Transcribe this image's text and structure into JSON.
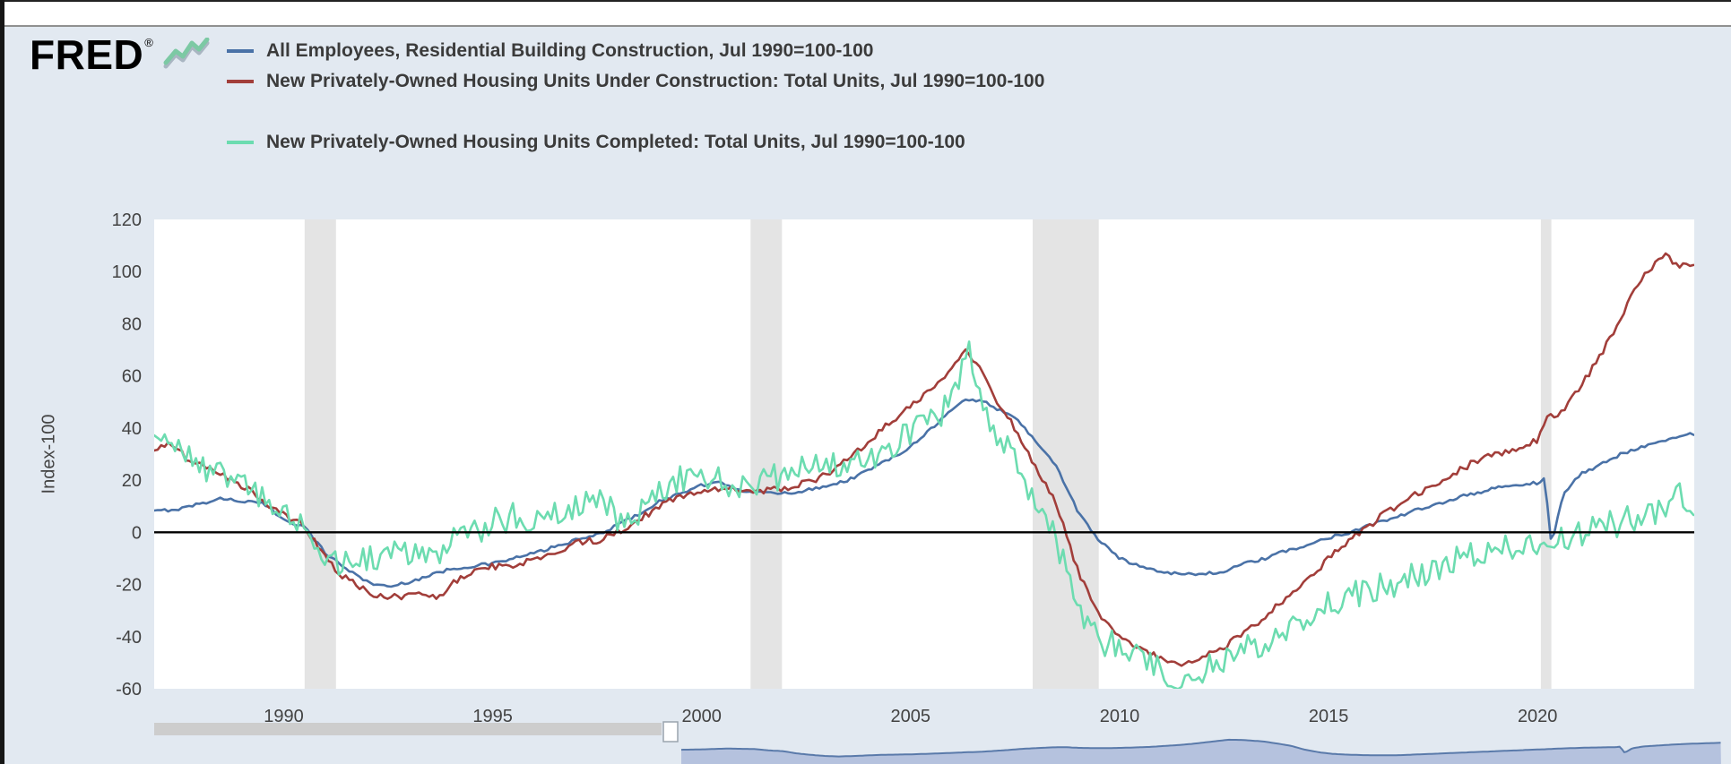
{
  "page": {
    "background": "#e2e9f1"
  },
  "header": {
    "logo": "FRED",
    "reg": "®"
  },
  "chart_data": {
    "type": "line",
    "title": "",
    "xlabel": "",
    "ylabel": "Index-100",
    "xlim": [
      1986.9,
      2023.75
    ],
    "ylim": [
      -60,
      120
    ],
    "yticks": [
      120,
      100,
      80,
      60,
      40,
      20,
      0,
      -20,
      -40,
      -60
    ],
    "xticks": [
      1990,
      1995,
      2000,
      2005,
      2010,
      2015,
      2020
    ],
    "zero_line": 0,
    "grid": false,
    "legend_position": "top-left",
    "recession_band_color": "#e4e4e4",
    "recessions": [
      [
        1990.5,
        1991.25
      ],
      [
        2001.17,
        2001.92
      ],
      [
        2007.92,
        2009.5
      ],
      [
        2020.08,
        2020.33
      ]
    ],
    "series": [
      {
        "name": "All Employees, Residential Building Construction, Jul 1990=100-100",
        "color": "#4a72a7",
        "jitter": 0.6,
        "x": [
          1986.9,
          1987.5,
          1988,
          1988.5,
          1989,
          1989.5,
          1990,
          1990.5,
          1991,
          1991.5,
          1992,
          1992.5,
          1993,
          1994,
          1995,
          1996,
          1997,
          1997.5,
          1998,
          1998.5,
          1999,
          1999.5,
          2000,
          2000.5,
          2001,
          2001.5,
          2002,
          2002.5,
          2003,
          2003.5,
          2004,
          2004.5,
          2005,
          2005.5,
          2006,
          2006.3,
          2006.8,
          2007,
          2007.5,
          2008,
          2008.5,
          2009,
          2009.5,
          2010,
          2010.5,
          2011,
          2011.5,
          2012,
          2012.5,
          2013,
          2013.5,
          2014,
          2014.5,
          2015,
          2015.5,
          2016,
          2016.5,
          2017,
          2017.5,
          2018,
          2018.5,
          2019,
          2019.5,
          2020,
          2020.17,
          2020.33,
          2020.6,
          2021,
          2021.5,
          2022,
          2022.5,
          2023,
          2023.75
        ],
        "y": [
          8,
          9,
          11,
          13,
          12,
          11,
          5,
          2,
          -8,
          -14,
          -19,
          -21,
          -19,
          -14,
          -12,
          -8,
          -3,
          -1,
          3,
          7,
          12,
          15,
          18,
          19,
          16,
          15,
          15,
          16,
          18,
          20,
          24,
          28,
          33,
          40,
          47,
          51,
          50,
          48,
          44,
          35,
          25,
          8,
          -3,
          -10,
          -13,
          -15,
          -16,
          -16,
          -15,
          -12,
          -10,
          -7,
          -5,
          -2,
          0,
          3,
          5,
          8,
          10,
          13,
          15,
          17,
          18,
          19,
          21,
          -5,
          14,
          22,
          26,
          30,
          33,
          35,
          38
        ]
      },
      {
        "name": "New Privately-Owned Housing Units Under Construction: Total Units, Jul 1990=100-100",
        "color": "#a23e3a",
        "jitter": 1.3,
        "x": [
          1986.9,
          1987.3,
          1987.7,
          1988,
          1988.5,
          1989,
          1989.5,
          1990,
          1990.5,
          1991,
          1991.5,
          1992,
          1992.5,
          1993,
          1993.7,
          1994,
          1994.5,
          1995,
          1995.5,
          1996,
          1996.5,
          1997,
          1997.5,
          1998,
          1998.5,
          1999,
          1999.5,
          2000,
          2000.5,
          2001,
          2001.5,
          2002,
          2002.5,
          2003,
          2003.5,
          2004,
          2004.5,
          2005,
          2005.5,
          2006,
          2006.3,
          2006.6,
          2007,
          2007.5,
          2008,
          2008.5,
          2009,
          2009.5,
          2010,
          2010.5,
          2011,
          2011.5,
          2012,
          2012.5,
          2013,
          2013.5,
          2014,
          2014.5,
          2015,
          2015.5,
          2016,
          2016.5,
          2017,
          2017.5,
          2018,
          2018.5,
          2019,
          2019.5,
          2020,
          2020.2,
          2020.5,
          2021,
          2021.5,
          2022,
          2022.3,
          2022.6,
          2022.9,
          2023.1,
          2023.3,
          2023.75
        ],
        "y": [
          32,
          34,
          28,
          26,
          22,
          18,
          12,
          7,
          2,
          -10,
          -18,
          -23,
          -25,
          -24,
          -25,
          -20,
          -15,
          -13,
          -13,
          -10,
          -8,
          -4,
          -3,
          0,
          5,
          10,
          14,
          16,
          17,
          16,
          16,
          17,
          19,
          22,
          28,
          35,
          42,
          48,
          55,
          62,
          70,
          65,
          52,
          40,
          25,
          10,
          -15,
          -32,
          -40,
          -45,
          -48,
          -50,
          -48,
          -44,
          -38,
          -32,
          -25,
          -18,
          -10,
          -3,
          3,
          9,
          14,
          18,
          23,
          27,
          30,
          32,
          35,
          44,
          45,
          55,
          68,
          82,
          92,
          100,
          104,
          106,
          103,
          102
        ]
      },
      {
        "name": "New Privately-Owned Housing Units Completed: Total Units, Jul 1990=100-100",
        "color": "#6cdcb0",
        "jitter": 5.5,
        "x": [
          1986.9,
          1987.2,
          1987.5,
          1988,
          1988.5,
          1989,
          1989.5,
          1990,
          1990.5,
          1991,
          1991.3,
          1992,
          1992.5,
          1993,
          1993.5,
          1994,
          1994.5,
          1995,
          1995.5,
          1996,
          1996.5,
          1997,
          1997.5,
          1998,
          1998.5,
          1999,
          1999.5,
          2000,
          2000.5,
          2001,
          2001.5,
          2002,
          2002.5,
          2003,
          2003.5,
          2004,
          2004.5,
          2005,
          2005.5,
          2006,
          2006.4,
          2006.6,
          2007,
          2007.5,
          2008,
          2008.3,
          2008.6,
          2009,
          2009.3,
          2009.6,
          2010,
          2010.5,
          2011,
          2011.3,
          2011.6,
          2012,
          2012.5,
          2013,
          2013.5,
          2014,
          2014.5,
          2015,
          2015.5,
          2016,
          2016.5,
          2017,
          2017.5,
          2018,
          2018.5,
          2019,
          2019.5,
          2020,
          2020.3,
          2020.6,
          2021,
          2021.5,
          2022,
          2022.5,
          2023,
          2023.3,
          2023.75
        ],
        "y": [
          42,
          38,
          30,
          26,
          22,
          18,
          14,
          8,
          2,
          -8,
          -12,
          -10,
          -8,
          -7,
          -10,
          -4,
          0,
          4,
          6,
          5,
          8,
          10,
          12,
          6,
          8,
          16,
          20,
          22,
          20,
          17,
          20,
          22,
          24,
          26,
          25,
          28,
          32,
          38,
          42,
          50,
          70,
          55,
          40,
          28,
          12,
          5,
          -10,
          -25,
          -38,
          -42,
          -42,
          -48,
          -52,
          -56,
          -57,
          -52,
          -50,
          -45,
          -42,
          -37,
          -33,
          -28,
          -25,
          -22,
          -20,
          -16,
          -14,
          -10,
          -8,
          -7,
          -4,
          -3,
          -8,
          -2,
          0,
          2,
          4,
          6,
          8,
          14,
          12
        ]
      }
    ]
  }
}
